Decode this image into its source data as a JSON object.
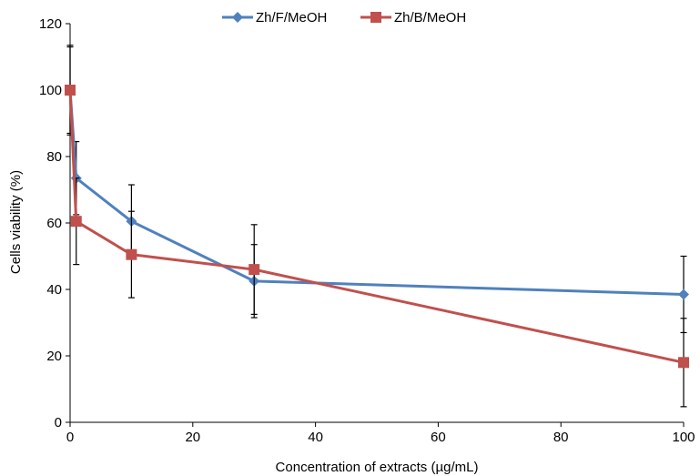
{
  "chart_data": {
    "type": "line",
    "title": "",
    "xlabel": "Concentration of extracts (µg/mL)",
    "ylabel": "Cells viability (%)",
    "xlim": [
      0,
      100
    ],
    "ylim": [
      0,
      120
    ],
    "xticks": [
      0,
      20,
      40,
      60,
      80,
      100
    ],
    "yticks": [
      0,
      20,
      40,
      60,
      80,
      100,
      120
    ],
    "grid": false,
    "legend_position": "top",
    "series": [
      {
        "name": "Zh/F/MeOH",
        "color": "#4f81bd",
        "marker": "diamond",
        "x": [
          0,
          1,
          10,
          30,
          100
        ],
        "y": [
          100,
          73.5,
          60.5,
          42.5,
          38.5
        ],
        "err": [
          13.5,
          11,
          11,
          11,
          11.5
        ]
      },
      {
        "name": "Zh/B/MeOH",
        "color": "#c0504d",
        "marker": "square",
        "x": [
          0,
          1,
          10,
          30,
          100
        ],
        "y": [
          100,
          60.5,
          50.5,
          46,
          18
        ],
        "err": [
          13,
          13,
          13,
          13.5,
          13.3
        ]
      }
    ]
  }
}
